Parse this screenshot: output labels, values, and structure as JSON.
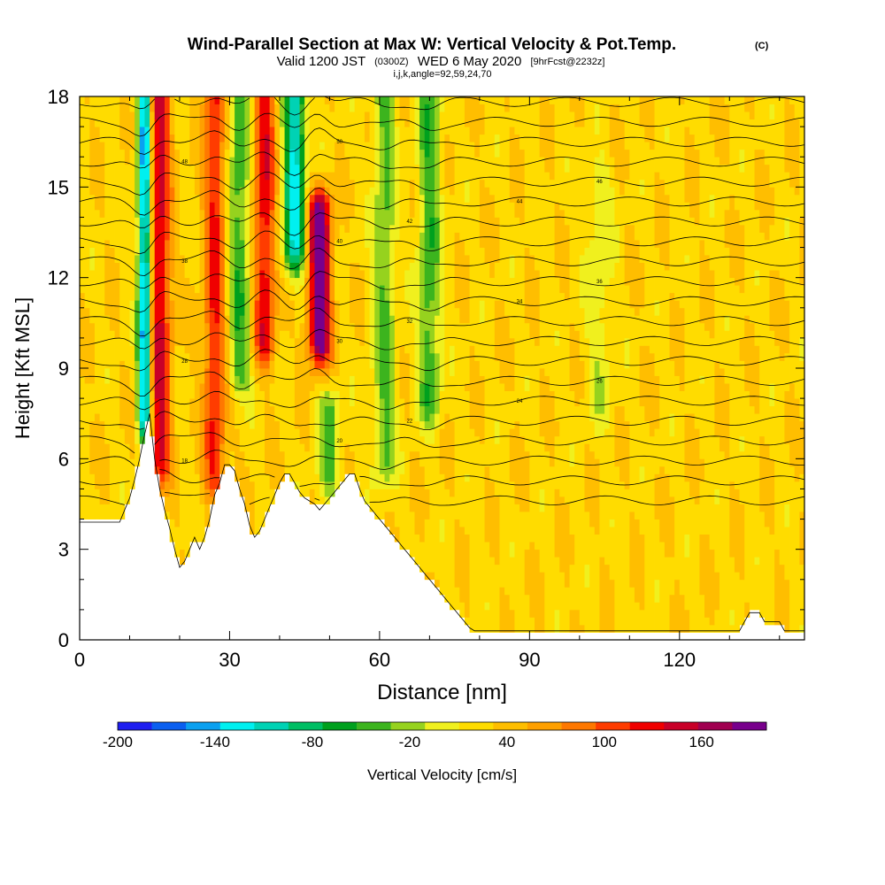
{
  "chart_data": {
    "type": "heatmap",
    "title": "Wind-Parallel Section at Max W: Vertical Velocity & Pot.Temp.",
    "title_mark": "(C)",
    "subtitle": {
      "valid": "Valid 1200 JST",
      "zulu": "(0300Z)",
      "date": "WED 6 May 2020",
      "forecast": "[9hrFcst@2232z]",
      "indices": "i,j,k,angle=92,59,24,70"
    },
    "xlabel": "Distance [nm]",
    "ylabel": "Height [Kft MSL]",
    "xlim": [
      0,
      145
    ],
    "ylim": [
      0,
      18
    ],
    "xticks": [
      "0",
      "30",
      "60",
      "90",
      "120"
    ],
    "xtick_values": [
      0,
      30,
      60,
      90,
      120
    ],
    "yticks": [
      "0",
      "3",
      "6",
      "9",
      "12",
      "15",
      "18"
    ],
    "ytick_values": [
      0,
      3,
      6,
      9,
      12,
      15,
      18
    ],
    "colorbar": {
      "label": "Vertical Velocity [cm/s]",
      "tick_labels": [
        "-200",
        "-140",
        "-80",
        "-20",
        "40",
        "100",
        "160"
      ],
      "tick_values": [
        -200,
        -140,
        -80,
        -20,
        40,
        100,
        160
      ],
      "levels": [
        -200,
        -180,
        -160,
        -140,
        -120,
        -100,
        -80,
        -60,
        -40,
        -20,
        0,
        20,
        40,
        60,
        80,
        100,
        120,
        140,
        160,
        180
      ],
      "colors": [
        "#1e1ef0",
        "#0a5ff0",
        "#0aa0f0",
        "#00f0f0",
        "#00d2b4",
        "#00be64",
        "#00a01e",
        "#3cb41e",
        "#96d21e",
        "#f0f01e",
        "#ffdc00",
        "#ffbe00",
        "#ffa000",
        "#ff7800",
        "#ff3c00",
        "#f00000",
        "#c80028",
        "#a00050",
        "#78008c"
      ]
    },
    "features": [
      {
        "x": 13,
        "z_bottom": 7.5,
        "z_top": 18,
        "w": -180,
        "note": "narrow downdraft column"
      },
      {
        "x": 16,
        "z_bottom": 6,
        "z_top": 18,
        "w": 110
      },
      {
        "x": 27,
        "z_bottom": 5.5,
        "z_top": 18,
        "w": 90
      },
      {
        "x": 32,
        "z_bottom": 9,
        "z_top": 18,
        "w": -70
      },
      {
        "x": 37,
        "z_bottom": 10,
        "z_top": 18,
        "w": 100
      },
      {
        "x": 43,
        "z_bottom": 13,
        "z_top": 18,
        "w": -140
      },
      {
        "x": 48,
        "z_bottom": 10,
        "z_top": 14,
        "w": 170,
        "note": "max updraft core"
      },
      {
        "x": 61,
        "z_bottom": 6,
        "z_top": 18,
        "w": -60
      },
      {
        "x": 70,
        "z_bottom": 8,
        "z_top": 18,
        "w": -70
      },
      {
        "x": 104,
        "z_bottom": 8,
        "z_top": 15,
        "w": -30
      },
      {
        "x": 50,
        "z_bottom": 5.5,
        "z_top": 7.5,
        "w": -60
      }
    ],
    "terrain_profile": {
      "x": [
        0,
        8,
        9,
        10,
        11,
        12,
        13,
        14,
        15,
        16,
        17,
        18,
        19,
        20,
        21,
        22,
        23,
        24,
        25,
        26,
        27,
        28,
        29,
        30,
        31,
        32,
        33,
        34,
        35,
        36,
        37,
        38,
        39,
        40,
        41,
        42,
        43,
        44,
        45,
        46,
        47,
        48,
        49,
        50,
        51,
        52,
        53,
        54,
        55,
        56,
        57,
        58,
        59,
        60,
        61,
        62,
        63,
        64,
        65,
        66,
        67,
        68,
        69,
        70,
        71,
        72,
        73,
        74,
        75,
        76,
        77,
        78,
        79,
        80,
        81,
        82,
        83,
        84,
        85,
        86,
        87,
        88,
        132,
        133,
        134,
        135,
        136,
        137,
        138,
        139,
        140,
        141,
        142,
        145
      ],
      "z": [
        3.9,
        3.9,
        4.3,
        4.7,
        5.3,
        6.0,
        6.8,
        7.5,
        6.0,
        5.0,
        4.3,
        3.7,
        3.0,
        2.4,
        2.6,
        3.0,
        3.4,
        3.0,
        3.4,
        4.0,
        4.8,
        5.2,
        5.8,
        5.8,
        5.6,
        5.0,
        4.5,
        3.8,
        3.4,
        3.6,
        4.0,
        4.4,
        4.8,
        5.2,
        5.5,
        5.5,
        5.2,
        4.9,
        4.7,
        4.6,
        4.5,
        4.3,
        4.5,
        4.7,
        4.9,
        5.1,
        5.3,
        5.5,
        5.5,
        5.0,
        4.6,
        4.4,
        4.2,
        4.0,
        3.8,
        3.6,
        3.4,
        3.2,
        3.0,
        2.8,
        2.6,
        2.4,
        2.2,
        2.0,
        1.8,
        1.6,
        1.4,
        1.2,
        1.0,
        0.8,
        0.6,
        0.4,
        0.3,
        0.3,
        0.3,
        0.3,
        0.3,
        0.3,
        0.3,
        0.3,
        0.3,
        0.3,
        0.3,
        0.6,
        0.9,
        0.9,
        0.9,
        0.6,
        0.6,
        0.6,
        0.6,
        0.3,
        0.3,
        0.3
      ]
    },
    "isentropes": {
      "levels": [
        14,
        16,
        18,
        20,
        22,
        24,
        26,
        28,
        30,
        32,
        34,
        36,
        38,
        40,
        42,
        44,
        46,
        48,
        50,
        52,
        54
      ],
      "labels": [
        "18",
        "20",
        "22",
        "24",
        "26",
        "28",
        "30",
        "32",
        "34",
        "36",
        "38",
        "40",
        "42",
        "44",
        "46",
        "48",
        "50"
      ]
    }
  }
}
